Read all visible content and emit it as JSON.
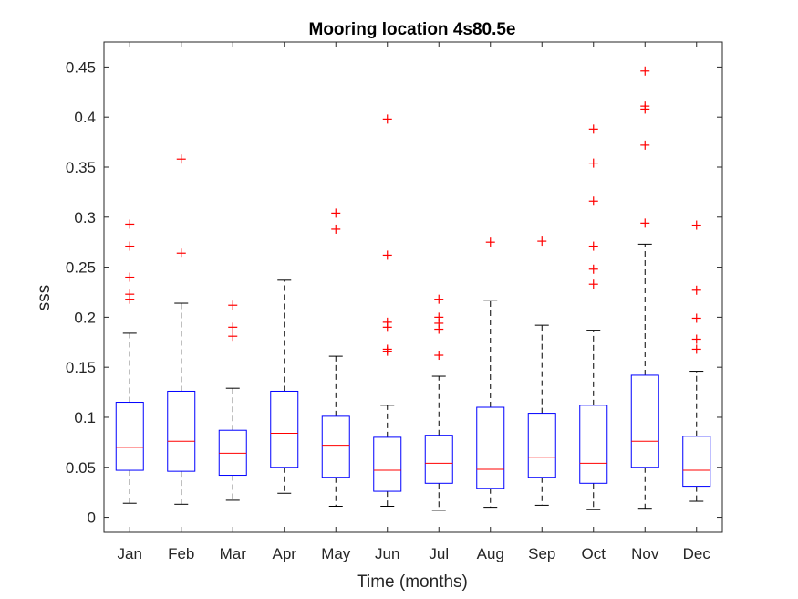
{
  "chart_data": {
    "type": "box",
    "title": "Mooring location 4s80.5e",
    "xlabel": "Time (months)",
    "ylabel": "sss",
    "ylim": [
      -0.015,
      0.475
    ],
    "yticks": [
      0,
      0.05,
      0.1,
      0.15,
      0.2,
      0.25,
      0.3,
      0.35,
      0.4,
      0.45
    ],
    "ytick_labels": [
      "0",
      "0.05",
      "0.1",
      "0.15",
      "0.2",
      "0.25",
      "0.3",
      "0.35",
      "0.4",
      "0.45"
    ],
    "categories": [
      "Jan",
      "Feb",
      "Mar",
      "Apr",
      "May",
      "Jun",
      "Jul",
      "Aug",
      "Sep",
      "Oct",
      "Nov",
      "Dec"
    ],
    "boxes": [
      {
        "whisker_low": 0.014,
        "q1": 0.047,
        "median": 0.07,
        "q3": 0.115,
        "whisker_high": 0.184,
        "outliers": [
          0.293,
          0.271,
          0.24,
          0.223,
          0.218
        ]
      },
      {
        "whisker_low": 0.013,
        "q1": 0.046,
        "median": 0.076,
        "q3": 0.126,
        "whisker_high": 0.214,
        "outliers": [
          0.358,
          0.264
        ]
      },
      {
        "whisker_low": 0.017,
        "q1": 0.042,
        "median": 0.064,
        "q3": 0.087,
        "whisker_high": 0.129,
        "outliers": [
          0.212,
          0.19,
          0.181
        ]
      },
      {
        "whisker_low": 0.024,
        "q1": 0.05,
        "median": 0.084,
        "q3": 0.126,
        "whisker_high": 0.237,
        "outliers": []
      },
      {
        "whisker_low": 0.011,
        "q1": 0.04,
        "median": 0.072,
        "q3": 0.101,
        "whisker_high": 0.161,
        "outliers": [
          0.304,
          0.288
        ]
      },
      {
        "whisker_low": 0.011,
        "q1": 0.026,
        "median": 0.047,
        "q3": 0.08,
        "whisker_high": 0.112,
        "outliers": [
          0.398,
          0.262,
          0.195,
          0.19,
          0.168,
          0.166
        ]
      },
      {
        "whisker_low": 0.007,
        "q1": 0.034,
        "median": 0.054,
        "q3": 0.082,
        "whisker_high": 0.141,
        "outliers": [
          0.218,
          0.2,
          0.194,
          0.188,
          0.162
        ]
      },
      {
        "whisker_low": 0.01,
        "q1": 0.029,
        "median": 0.048,
        "q3": 0.11,
        "whisker_high": 0.217,
        "outliers": [
          0.275
        ]
      },
      {
        "whisker_low": 0.012,
        "q1": 0.04,
        "median": 0.06,
        "q3": 0.104,
        "whisker_high": 0.192,
        "outliers": [
          0.276
        ]
      },
      {
        "whisker_low": 0.008,
        "q1": 0.034,
        "median": 0.054,
        "q3": 0.112,
        "whisker_high": 0.187,
        "outliers": [
          0.388,
          0.354,
          0.316,
          0.271,
          0.248,
          0.233
        ]
      },
      {
        "whisker_low": 0.009,
        "q1": 0.05,
        "median": 0.076,
        "q3": 0.142,
        "whisker_high": 0.273,
        "outliers": [
          0.446,
          0.411,
          0.408,
          0.372,
          0.294
        ]
      },
      {
        "whisker_low": 0.016,
        "q1": 0.031,
        "median": 0.047,
        "q3": 0.081,
        "whisker_high": 0.146,
        "outliers": [
          0.292,
          0.227,
          0.199,
          0.178,
          0.168
        ]
      }
    ],
    "colors": {
      "box": "#0000ff",
      "median": "#ff0000",
      "whisker": "#000000",
      "outlier": "#ff0000",
      "axis": "#262626"
    },
    "grid": false,
    "legend": "none"
  }
}
